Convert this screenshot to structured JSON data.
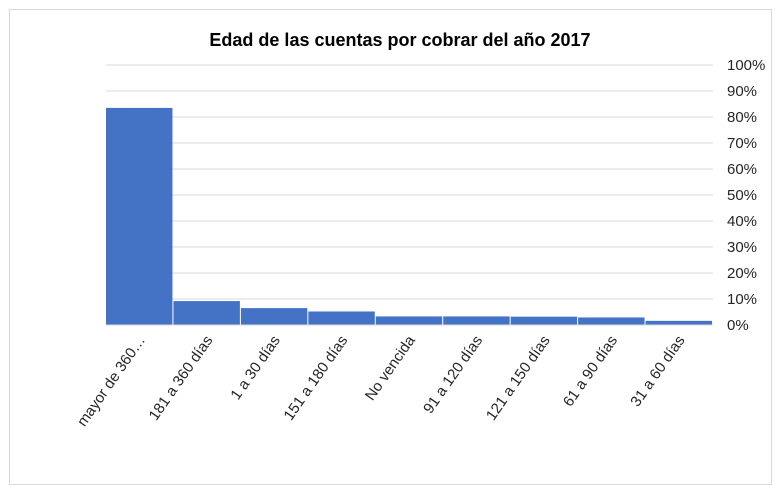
{
  "chart_data": {
    "type": "bar",
    "title": "Edad de las cuentas por cobrar del año 2017",
    "categories": [
      "mayor de 360…",
      "181 a 360 días",
      "1 a 30 días",
      "151 a 180 días",
      "No vencida",
      "91 a 120 días",
      "121 a 150 días",
      "61 a 90 días",
      "31 a 60 días"
    ],
    "values": [
      83.5,
      9.2,
      6.5,
      5.2,
      3.3,
      3.3,
      3.2,
      2.9,
      1.6
    ],
    "value_unit": "%",
    "ylim": [
      0,
      100
    ],
    "y_axis_position": "right",
    "yticks": [
      "0%",
      "10%",
      "20%",
      "30%",
      "40%",
      "50%",
      "60%",
      "70%",
      "80%",
      "90%",
      "100%"
    ],
    "grid": true,
    "legend": "none",
    "colors": {
      "bar": "#4472c4",
      "grid": "#d9d9d9"
    }
  }
}
